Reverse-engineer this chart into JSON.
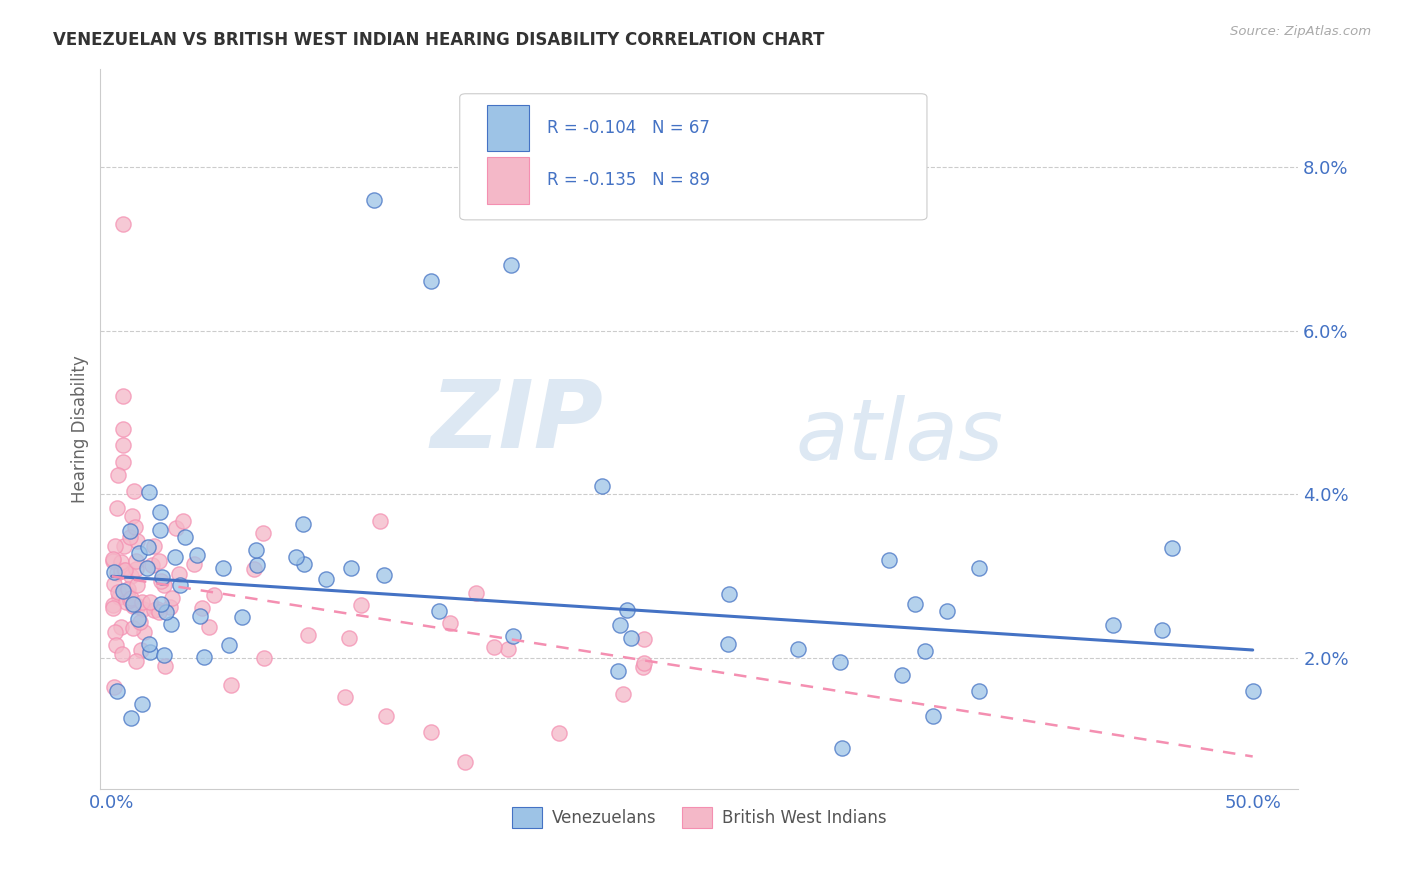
{
  "title": "VENEZUELAN VS BRITISH WEST INDIAN HEARING DISABILITY CORRELATION CHART",
  "source": "Source: ZipAtlas.com",
  "ylabel": "Hearing Disability",
  "ytick_vals": [
    0.02,
    0.04,
    0.06,
    0.08
  ],
  "ytick_labels": [
    "2.0%",
    "4.0%",
    "6.0%",
    "8.0%"
  ],
  "xtick_vals": [
    0.0,
    0.5
  ],
  "xtick_labels": [
    "0.0%",
    "50.0%"
  ],
  "xlim": [
    -0.005,
    0.52
  ],
  "ylim": [
    0.004,
    0.092
  ],
  "blue_color": "#4472c4",
  "blue_fill": "#9dc3e6",
  "pink_color": "#f48fb1",
  "pink_fill": "#f4b8c8",
  "legend_r_blue": "R = -0.104",
  "legend_n_blue": "N = 67",
  "legend_r_pink": "R = -0.135",
  "legend_n_pink": "N = 89",
  "watermark_zip": "ZIP",
  "watermark_atlas": "atlas",
  "trendline_blue_x0": 0.0,
  "trendline_blue_y0": 0.03,
  "trendline_blue_x1": 0.5,
  "trendline_blue_y1": 0.021,
  "trendline_pink_x0": 0.0,
  "trendline_pink_y0": 0.03,
  "trendline_pink_x1": 0.5,
  "trendline_pink_y1": 0.008
}
